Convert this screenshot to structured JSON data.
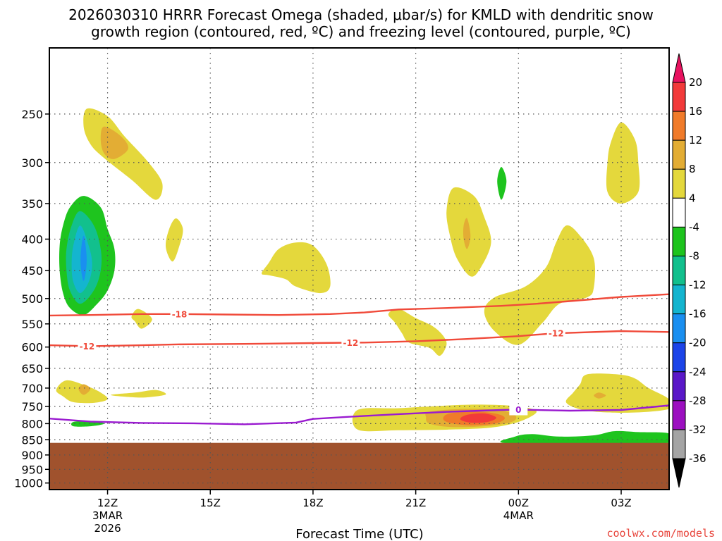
{
  "chart_data": {
    "type": "heatmap",
    "title_line1": "2026030310 HRRR Forecast Omega (shaded, μbar/s) for KMLD with dendritic snow",
    "title_line2": "growth region (contoured, red, ºC) and freezing level (contoured, purple, ºC)",
    "xlabel": "Forecast Time (UTC)",
    "credit": "coolwx.com/models",
    "x_hours_range": [
      10.3,
      28.4
    ],
    "x_ticks": [
      {
        "hour": 12,
        "label": "12Z",
        "sub1": "3MAR",
        "sub2": "2026"
      },
      {
        "hour": 15,
        "label": "15Z",
        "sub1": "",
        "sub2": ""
      },
      {
        "hour": 18,
        "label": "18Z",
        "sub1": "",
        "sub2": ""
      },
      {
        "hour": 21,
        "label": "21Z",
        "sub1": "",
        "sub2": ""
      },
      {
        "hour": 24,
        "label": "00Z",
        "sub1": "4MAR",
        "sub2": ""
      },
      {
        "hour": 27,
        "label": "03Z",
        "sub1": "",
        "sub2": ""
      }
    ],
    "y_pressure_range": [
      195,
      1025
    ],
    "y_ticks": [
      250,
      300,
      350,
      400,
      450,
      500,
      550,
      600,
      650,
      700,
      750,
      800,
      850,
      900,
      950,
      1000
    ],
    "ground_pressure": 860,
    "colorbar": {
      "levels": [
        "20",
        "16",
        "12",
        "8",
        "4",
        "-4",
        "-8",
        "-12",
        "-16",
        "-20",
        "-24",
        "-28",
        "-32",
        "-36"
      ],
      "colors": [
        "#e8125f",
        "#f23a3a",
        "#f07b2a",
        "#e3ad34",
        "#e4d83c",
        "#ffffff",
        "#1ec41e",
        "#12c08d",
        "#14b5cf",
        "#1a8ff0",
        "#1c44e8",
        "#5a18c8",
        "#9c10c0",
        "#a4a4a4",
        "#000000"
      ]
    },
    "contours": [
      {
        "name": "-18",
        "color": "#f04a3a",
        "label": "-18",
        "points": [
          [
            10.3,
            533
          ],
          [
            11.5,
            532
          ],
          [
            13,
            530
          ],
          [
            14,
            530
          ],
          [
            15.5,
            531
          ],
          [
            17,
            532
          ],
          [
            18.5,
            530
          ],
          [
            19.5,
            527
          ],
          [
            20.5,
            521
          ],
          [
            22,
            518
          ],
          [
            23.5,
            514
          ],
          [
            24.5,
            510
          ],
          [
            25.5,
            505
          ],
          [
            27,
            497
          ],
          [
            28.4,
            492
          ]
        ],
        "label_hour": 14.1
      },
      {
        "name": "-12",
        "color": "#f04a3a",
        "label": "-12",
        "points": [
          [
            10.3,
            596
          ],
          [
            11.5,
            598
          ],
          [
            13,
            596
          ],
          [
            14,
            594
          ],
          [
            16,
            593
          ],
          [
            18,
            591
          ],
          [
            19.5,
            590
          ],
          [
            21,
            587
          ],
          [
            22.5,
            582
          ],
          [
            24,
            576
          ],
          [
            25,
            570
          ],
          [
            27,
            565
          ],
          [
            28.4,
            567
          ]
        ],
        "label_hour": 11.4,
        "label2_hour": 19.1,
        "label3_hour": 25.1
      },
      {
        "name": "0",
        "color": "#9a1bd0",
        "label": "0",
        "points": [
          [
            10.3,
            785
          ],
          [
            11.5,
            794
          ],
          [
            13,
            798
          ],
          [
            14.5,
            799
          ],
          [
            16,
            802
          ],
          [
            17.5,
            797
          ],
          [
            18,
            786
          ],
          [
            19,
            780
          ],
          [
            20.5,
            772
          ],
          [
            22,
            765
          ],
          [
            23.5,
            760
          ],
          [
            24,
            759
          ],
          [
            25.5,
            762
          ],
          [
            27,
            760
          ],
          [
            28.4,
            747
          ]
        ],
        "label_hour": 24.0
      }
    ],
    "omega_regions": [
      {
        "value": "4 to 8",
        "color": "#e4d83c",
        "pts": [
          [
            11.4,
            245
          ],
          [
            12,
            252
          ],
          [
            12.5,
            272
          ],
          [
            13.2,
            300
          ],
          [
            13.6,
            325
          ],
          [
            13.4,
            345
          ],
          [
            12.7,
            320
          ],
          [
            11.9,
            295
          ],
          [
            11.5,
            280
          ],
          [
            11.3,
            262
          ]
        ]
      },
      {
        "value": "8 to 12",
        "color": "#e3ad34",
        "pts": [
          [
            11.9,
            262
          ],
          [
            12.4,
            272
          ],
          [
            12.6,
            285
          ],
          [
            12.2,
            296
          ],
          [
            11.9,
            290
          ],
          [
            11.8,
            275
          ]
        ]
      },
      {
        "value": "4 to 8",
        "color": "#e4d83c",
        "pts": [
          [
            14.0,
            370
          ],
          [
            14.2,
            385
          ],
          [
            14.1,
            410
          ],
          [
            13.9,
            435
          ],
          [
            13.7,
            412
          ],
          [
            13.8,
            385
          ]
        ]
      },
      {
        "value": "4 to 8",
        "color": "#e4d83c",
        "pts": [
          [
            17.0,
            415
          ],
          [
            17.5,
            405
          ],
          [
            18.0,
            410
          ],
          [
            18.4,
            440
          ],
          [
            18.5,
            478
          ],
          [
            18.2,
            490
          ],
          [
            17.5,
            478
          ],
          [
            17.2,
            465
          ],
          [
            16.7,
            458
          ],
          [
            16.5,
            455
          ],
          [
            16.7,
            438
          ]
        ]
      },
      {
        "value": "-4 to -8",
        "color": "#1ec41e",
        "pts": [
          [
            11.3,
            340
          ],
          [
            11.8,
            355
          ],
          [
            12.0,
            385
          ],
          [
            12.2,
            415
          ],
          [
            12.2,
            450
          ],
          [
            12.0,
            485
          ],
          [
            11.7,
            510
          ],
          [
            11.3,
            532
          ],
          [
            10.9,
            518
          ],
          [
            10.7,
            490
          ],
          [
            10.6,
            450
          ],
          [
            10.6,
            410
          ],
          [
            10.7,
            380
          ],
          [
            10.9,
            355
          ]
        ]
      },
      {
        "value": "-8 to -12",
        "color": "#12c08d",
        "pts": [
          [
            11.2,
            360
          ],
          [
            11.6,
            380
          ],
          [
            11.8,
            415
          ],
          [
            11.8,
            450
          ],
          [
            11.6,
            485
          ],
          [
            11.2,
            510
          ],
          [
            10.9,
            485
          ],
          [
            10.8,
            450
          ],
          [
            10.8,
            415
          ],
          [
            10.95,
            380
          ]
        ]
      },
      {
        "value": "-12 to -16",
        "color": "#14b5cf",
        "pts": [
          [
            11.2,
            380
          ],
          [
            11.45,
            410
          ],
          [
            11.55,
            440
          ],
          [
            11.45,
            470
          ],
          [
            11.2,
            490
          ],
          [
            11.0,
            470
          ],
          [
            10.95,
            440
          ],
          [
            11.0,
            410
          ]
        ]
      },
      {
        "value": "-16 to -20",
        "color": "#1a8ff0",
        "pts": [
          [
            11.3,
            395
          ],
          [
            11.38,
            420
          ],
          [
            11.38,
            445
          ],
          [
            11.3,
            468
          ],
          [
            11.22,
            445
          ],
          [
            11.22,
            420
          ]
        ]
      },
      {
        "value": "4 to 8",
        "color": "#e4d83c",
        "pts": [
          [
            12.9,
            520
          ],
          [
            13.3,
            540
          ],
          [
            13.0,
            560
          ],
          [
            12.8,
            545
          ],
          [
            12.7,
            535
          ]
        ]
      },
      {
        "value": "4 to 8",
        "color": "#e4d83c",
        "pts": [
          [
            20.5,
            520
          ],
          [
            21.0,
            538
          ],
          [
            21.5,
            555
          ],
          [
            21.8,
            575
          ],
          [
            21.9,
            595
          ],
          [
            21.7,
            620
          ],
          [
            21.4,
            602
          ],
          [
            20.8,
            590
          ],
          [
            20.6,
            570
          ],
          [
            20.4,
            548
          ],
          [
            20.2,
            530
          ]
        ]
      },
      {
        "value": "4 to 8",
        "color": "#e4d83c",
        "pts": [
          [
            22.1,
            330
          ],
          [
            22.7,
            340
          ],
          [
            23.0,
            368
          ],
          [
            23.2,
            405
          ],
          [
            22.9,
            445
          ],
          [
            22.6,
            460
          ],
          [
            22.2,
            430
          ],
          [
            22.0,
            395
          ],
          [
            21.9,
            360
          ]
        ]
      },
      {
        "value": "8 to 12",
        "color": "#e3ad34",
        "pts": [
          [
            22.5,
            370
          ],
          [
            22.6,
            395
          ],
          [
            22.5,
            415
          ],
          [
            22.4,
            400
          ],
          [
            22.4,
            380
          ]
        ]
      },
      {
        "value": "-4 to -8",
        "color": "#1ec41e",
        "pts": [
          [
            23.5,
            305
          ],
          [
            23.65,
            322
          ],
          [
            23.5,
            345
          ],
          [
            23.38,
            322
          ]
        ]
      },
      {
        "value": "4 to 8",
        "color": "#e4d83c",
        "pts": [
          [
            25.4,
            380
          ],
          [
            25.8,
            395
          ],
          [
            26.2,
            430
          ],
          [
            26.2,
            480
          ],
          [
            26.0,
            498
          ],
          [
            25.2,
            510
          ],
          [
            24.7,
            548
          ],
          [
            24.0,
            595
          ],
          [
            23.3,
            565
          ],
          [
            23.0,
            525
          ],
          [
            23.3,
            498
          ],
          [
            24.2,
            478
          ],
          [
            24.8,
            445
          ],
          [
            25.1,
            405
          ]
        ]
      },
      {
        "value": "4 to 8",
        "color": "#e4d83c",
        "pts": [
          [
            27.0,
            258
          ],
          [
            27.4,
            275
          ],
          [
            27.5,
            300
          ],
          [
            27.5,
            335
          ],
          [
            27.0,
            350
          ],
          [
            26.6,
            335
          ],
          [
            26.6,
            300
          ],
          [
            26.7,
            278
          ]
        ]
      },
      {
        "value": "4 to 8",
        "color": "#e4d83c",
        "pts": [
          [
            10.8,
            680
          ],
          [
            11.4,
            695
          ],
          [
            11.8,
            712
          ],
          [
            12.0,
            730
          ],
          [
            11.6,
            740
          ],
          [
            11.0,
            738
          ],
          [
            10.7,
            722
          ],
          [
            10.5,
            705
          ]
        ]
      },
      {
        "value": "8 to 12",
        "color": "#e3ad34",
        "pts": [
          [
            11.3,
            690
          ],
          [
            11.5,
            702
          ],
          [
            11.3,
            718
          ],
          [
            11.15,
            702
          ]
        ]
      },
      {
        "value": "4 to 8",
        "color": "#e4d83c",
        "pts": [
          [
            12.1,
            718
          ],
          [
            12.8,
            712
          ],
          [
            13.4,
            705
          ],
          [
            13.7,
            717
          ],
          [
            13.1,
            725
          ],
          [
            12.5,
            723
          ]
        ]
      },
      {
        "value": "-4 to -8",
        "color": "#1ec41e",
        "pts": [
          [
            11.0,
            795
          ],
          [
            11.5,
            792
          ],
          [
            11.9,
            800
          ],
          [
            11.5,
            808
          ],
          [
            11.0,
            808
          ]
        ]
      },
      {
        "value": "4 to 8",
        "color": "#e4d83c",
        "pts": [
          [
            19.3,
            760
          ],
          [
            20.5,
            755
          ],
          [
            21.8,
            748
          ],
          [
            22.8,
            745
          ],
          [
            23.8,
            748
          ],
          [
            24.4,
            757
          ],
          [
            24.5,
            770
          ],
          [
            24.0,
            795
          ],
          [
            23.2,
            812
          ],
          [
            22.0,
            818
          ],
          [
            20.5,
            820
          ],
          [
            19.3,
            818
          ]
        ]
      },
      {
        "value": "8 to 12",
        "color": "#e3ad34",
        "pts": [
          [
            21.4,
            765
          ],
          [
            22.4,
            757
          ],
          [
            23.4,
            760
          ],
          [
            23.9,
            775
          ],
          [
            23.8,
            795
          ],
          [
            23.0,
            808
          ],
          [
            22.0,
            810
          ],
          [
            21.4,
            800
          ],
          [
            21.3,
            782
          ]
        ]
      },
      {
        "value": "12 to 16",
        "color": "#f07b2a",
        "pts": [
          [
            22.0,
            770
          ],
          [
            22.8,
            765
          ],
          [
            23.4,
            772
          ],
          [
            23.6,
            785
          ],
          [
            23.3,
            800
          ],
          [
            22.6,
            805
          ],
          [
            22.0,
            798
          ],
          [
            21.8,
            785
          ]
        ]
      },
      {
        "value": "16 to 20",
        "color": "#f23a3a",
        "pts": [
          [
            22.5,
            774
          ],
          [
            23.0,
            770
          ],
          [
            23.35,
            782
          ],
          [
            23.1,
            795
          ],
          [
            22.6,
            797
          ],
          [
            22.3,
            787
          ]
        ]
      },
      {
        "value": "4 to 8",
        "color": "#e4d83c",
        "pts": [
          [
            26.0,
            665
          ],
          [
            26.9,
            665
          ],
          [
            27.4,
            675
          ],
          [
            27.8,
            700
          ],
          [
            28.4,
            730
          ],
          [
            28.4,
            757
          ],
          [
            27.2,
            768
          ],
          [
            26.0,
            762
          ],
          [
            25.4,
            740
          ],
          [
            25.6,
            712
          ],
          [
            25.8,
            690
          ]
        ]
      },
      {
        "value": "8 to 12",
        "color": "#e3ad34",
        "pts": [
          [
            26.35,
            712
          ],
          [
            26.55,
            720
          ],
          [
            26.35,
            728
          ],
          [
            26.2,
            720
          ]
        ]
      },
      {
        "value": "-4 to -8",
        "color": "#1ec41e",
        "pts": [
          [
            23.8,
            862
          ],
          [
            23.9,
            840
          ],
          [
            24.4,
            832
          ],
          [
            25.2,
            840
          ],
          [
            26.2,
            836
          ],
          [
            26.8,
            823
          ],
          [
            27.5,
            826
          ],
          [
            28.4,
            830
          ],
          [
            28.4,
            860
          ]
        ]
      }
    ]
  }
}
